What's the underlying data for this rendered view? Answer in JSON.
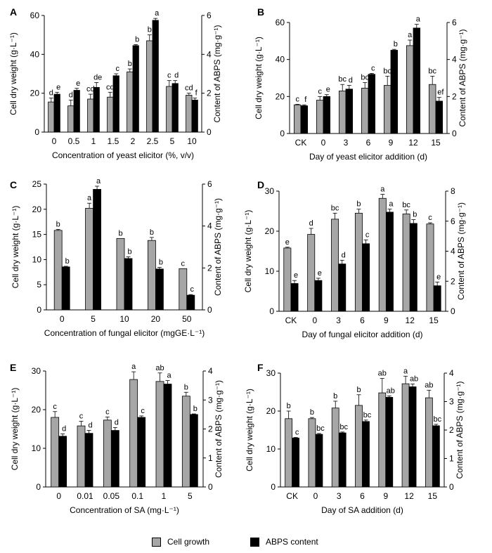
{
  "legend": {
    "cell_growth": "Cell growth",
    "abps": "ABPS content",
    "cell_color": "#a6a6a6",
    "abps_color": "#000000"
  },
  "chart_data": [
    {
      "id": "A",
      "type": "bar",
      "categories": [
        "0",
        "0.5",
        "1",
        "1.5",
        "2",
        "2.5",
        "5",
        "10"
      ],
      "xlabel": "Concentration of yeast elicitor (%, v/v)",
      "ylabel": "Cell dry weight (g·L⁻¹)",
      "ylim": [
        0,
        60
      ],
      "yticks": [
        0,
        20,
        40,
        60
      ],
      "y2label": "Content of ABPS (mg·g⁻¹)",
      "y2lim": [
        0,
        6
      ],
      "y2ticks": [
        0,
        2,
        4,
        6
      ],
      "series": [
        {
          "name": "Cell growth",
          "axis": "left",
          "values": [
            15.5,
            13.5,
            17,
            18,
            31,
            47,
            23.5,
            19
          ],
          "errors": [
            2,
            3,
            2.5,
            2.5,
            1.5,
            3,
            3,
            1
          ],
          "labels": [
            "d",
            "d",
            "cd",
            "cd",
            "b",
            "b",
            "c",
            "cd"
          ]
        },
        {
          "name": "ABPS content",
          "axis": "right",
          "values": [
            1.95,
            2.15,
            2.3,
            2.9,
            4.45,
            5.75,
            2.5,
            1.65
          ],
          "errors": [
            0.1,
            0.1,
            0.25,
            0.1,
            0.05,
            0.1,
            0.15,
            0.1
          ],
          "labels": [
            "e",
            "e",
            "de",
            "c",
            "b",
            "a",
            "d",
            "f"
          ]
        }
      ]
    },
    {
      "id": "B",
      "type": "bar",
      "categories": [
        "CK",
        "0",
        "3",
        "6",
        "9",
        "12",
        "15"
      ],
      "xlabel": "Day of yeast elicitor addition (d)",
      "ylabel": "Cell dry weight (g·L⁻¹)",
      "ylim": [
        0,
        60
      ],
      "yticks": [
        0,
        20,
        40,
        60
      ],
      "y2label": "Content of ABPS (mg·g⁻¹)",
      "y2lim": [
        0,
        6
      ],
      "y2ticks": [
        0,
        2,
        4,
        6
      ],
      "series": [
        {
          "name": "Cell growth",
          "axis": "left",
          "values": [
            15.5,
            18,
            23,
            24.5,
            26,
            47.5,
            26.5
          ],
          "errors": [
            0.3,
            2,
            3.5,
            3,
            5,
            3,
            4.5
          ],
          "labels": [
            "c",
            "c",
            "bc",
            "bc",
            "bc",
            "a",
            "bc"
          ]
        },
        {
          "name": "ABPS content",
          "axis": "right",
          "values": [
            1.5,
            2.0,
            2.4,
            3.2,
            4.5,
            5.7,
            1.75
          ],
          "errors": [
            0.05,
            0.1,
            0.2,
            0.05,
            0.05,
            0.2,
            0.2
          ],
          "labels": [
            "f",
            "e",
            "d",
            "c",
            "b",
            "a",
            "ef"
          ]
        }
      ]
    },
    {
      "id": "C",
      "type": "bar",
      "categories": [
        "0",
        "5",
        "10",
        "20",
        "50"
      ],
      "xlabel": "Concentration of fungal elicitor (mgGE·L⁻¹)",
      "ylabel": "Cell dry weight (g·L⁻¹)",
      "ylim": [
        0,
        25
      ],
      "yticks": [
        0,
        5,
        10,
        15,
        20,
        25
      ],
      "y2label": "Content of ABPS (mg·g⁻¹)",
      "y2lim": [
        0,
        6
      ],
      "y2ticks": [
        0,
        2,
        4,
        6
      ],
      "series": [
        {
          "name": "Cell growth",
          "axis": "left",
          "values": [
            15.8,
            20.2,
            14.2,
            13.8,
            8.2
          ],
          "errors": [
            0.2,
            1,
            0,
            0.6,
            0
          ],
          "labels": [
            "b",
            "a",
            "b",
            "b",
            "c"
          ]
        },
        {
          "name": "ABPS content",
          "axis": "right",
          "values": [
            2.05,
            5.75,
            2.45,
            1.95,
            0.7
          ],
          "errors": [
            0.03,
            0.15,
            0.08,
            0.08,
            0.03
          ],
          "labels": [
            "b",
            "a",
            "b",
            "b",
            "c"
          ]
        }
      ]
    },
    {
      "id": "D",
      "type": "bar",
      "categories": [
        "CK",
        "0",
        "3",
        "6",
        "9",
        "12",
        "15"
      ],
      "xlabel": "Day of fungal elicitor addition (d)",
      "ylabel": "Cell dry weight (g·L⁻¹)",
      "ylim": [
        0,
        30
      ],
      "yticks": [
        0,
        10,
        20,
        30
      ],
      "y2label": "Content of ABPS (mg·g⁻¹)",
      "y2lim": [
        0,
        8
      ],
      "y2ticks": [
        0,
        2,
        4,
        6,
        8
      ],
      "series": [
        {
          "name": "Cell growth",
          "axis": "left",
          "values": [
            15.8,
            19.2,
            23,
            24.5,
            28.2,
            24.3,
            21.8
          ],
          "errors": [
            0.2,
            1.5,
            1.5,
            1,
            1,
            1,
            0.3
          ],
          "labels": [
            "e",
            "d",
            "bc",
            "b",
            "a",
            "bc",
            "c"
          ]
        },
        {
          "name": "ABPS content",
          "axis": "right",
          "values": [
            1.85,
            2.05,
            3.15,
            4.5,
            6.6,
            5.85,
            1.7
          ],
          "errors": [
            0.2,
            0.15,
            0.25,
            0.25,
            0.2,
            0.25,
            0.25
          ],
          "labels": [
            "e",
            "e",
            "d",
            "c",
            "a",
            "b",
            "e"
          ]
        }
      ]
    },
    {
      "id": "E",
      "type": "bar",
      "categories": [
        "0",
        "0.01",
        "0.05",
        "0.1",
        "1",
        "5"
      ],
      "xlabel": "Concentration of SA (mg·L⁻¹)",
      "ylabel": "Cell dry weight (g·L⁻¹)",
      "ylim": [
        0,
        30
      ],
      "yticks": [
        0,
        10,
        20,
        30
      ],
      "y2label": "Content of ABPS (mg·g⁻¹)",
      "y2lim": [
        0,
        4
      ],
      "y2ticks": [
        0,
        1,
        2,
        3,
        4
      ],
      "series": [
        {
          "name": "Cell growth",
          "axis": "left",
          "values": [
            18,
            15.8,
            17.3,
            27.8,
            27.3,
            23.5
          ],
          "errors": [
            1.5,
            1.2,
            0.8,
            2,
            2.2,
            1
          ],
          "labels": [
            "c",
            "c",
            "c",
            "a",
            "ab",
            "b"
          ]
        },
        {
          "name": "ABPS content",
          "axis": "right",
          "values": [
            1.75,
            1.85,
            1.95,
            2.4,
            3.55,
            2.5
          ],
          "errors": [
            0.08,
            0.1,
            0.1,
            0.05,
            0.12,
            0.02
          ],
          "labels": [
            "d",
            "d",
            "d",
            "c",
            "a",
            "b"
          ]
        }
      ]
    },
    {
      "id": "F",
      "type": "bar",
      "categories": [
        "CK",
        "0",
        "3",
        "6",
        "9",
        "12",
        "15"
      ],
      "xlabel": "Day of SA addition (d)",
      "ylabel": "Cell dry weight (g·L⁻¹)",
      "ylim": [
        0,
        30
      ],
      "yticks": [
        0,
        10,
        20,
        30
      ],
      "y2label": "Content of ABPS (mg·g⁻¹)",
      "y2lim": [
        0,
        4
      ],
      "y2ticks": [
        0,
        1,
        2,
        3,
        4
      ],
      "series": [
        {
          "name": "Cell growth",
          "axis": "left",
          "values": [
            18,
            18,
            20.8,
            21.5,
            24.8,
            27.2,
            23.5
          ],
          "errors": [
            2,
            0.3,
            1.8,
            2.8,
            3.8,
            2,
            2
          ],
          "labels": [
            "b",
            "b",
            "b",
            "b",
            "ab",
            "a",
            "ab"
          ]
        },
        {
          "name": "ABPS content",
          "axis": "right",
          "values": [
            1.72,
            1.85,
            1.9,
            2.3,
            3.15,
            3.52,
            2.15
          ],
          "errors": [
            0.02,
            0.03,
            0.03,
            0.05,
            0.05,
            0.1,
            0.05
          ],
          "labels": [
            "c",
            "bc",
            "bc",
            "bc",
            "ab",
            "ab",
            "bc"
          ]
        }
      ]
    }
  ]
}
